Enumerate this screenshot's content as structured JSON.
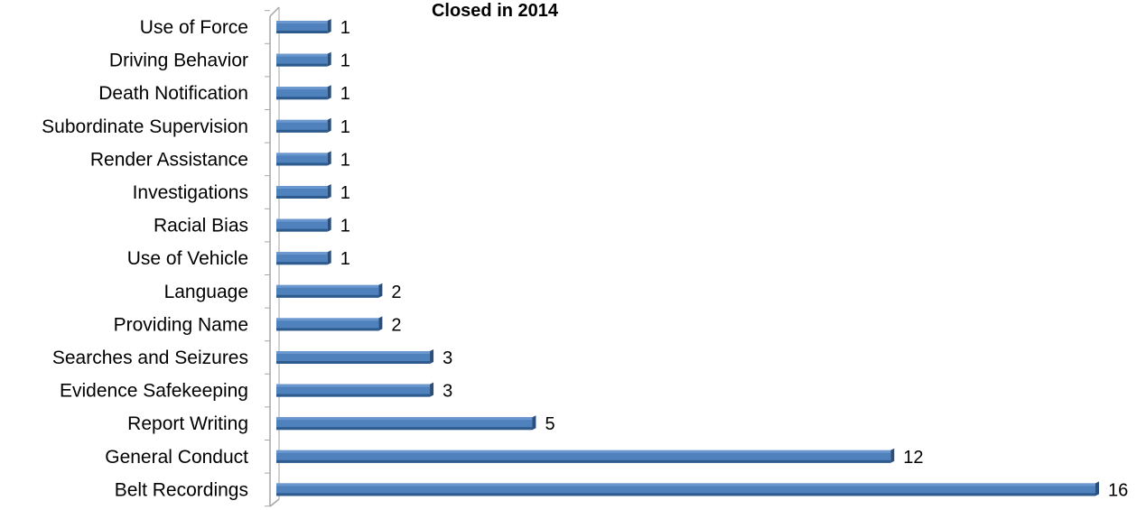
{
  "chart_data": {
    "type": "bar",
    "orientation": "horizontal",
    "title": "Closed in 2014",
    "xlabel": "",
    "ylabel": "",
    "categories": [
      "Use of Force",
      "Driving Behavior",
      "Death Notification",
      "Subordinate Supervision",
      "Render Assistance",
      "Investigations",
      "Racial Bias",
      "Use of Vehicle",
      "Language",
      "Providing Name",
      "Searches and Seizures",
      "Evidence Safekeeping",
      "Report Writing",
      "General Conduct",
      "Belt Recordings"
    ],
    "values": [
      1,
      1,
      1,
      1,
      1,
      1,
      1,
      1,
      2,
      2,
      3,
      3,
      5,
      12,
      16
    ],
    "data_labels": [
      "1",
      "1",
      "1",
      "1",
      "1",
      "1",
      "1",
      "1",
      "2",
      "2",
      "3",
      "3",
      "5",
      "12",
      "16"
    ],
    "xlim": [
      0,
      16
    ],
    "grid": false,
    "legend": "none",
    "colors": {
      "bar_front": "#4F81BD",
      "bar_top": "#6B97CF",
      "bar_bottom": "#2E5B8E",
      "bar_end": "#2B4E7A",
      "axis_wall": "#A6A6A6"
    }
  }
}
